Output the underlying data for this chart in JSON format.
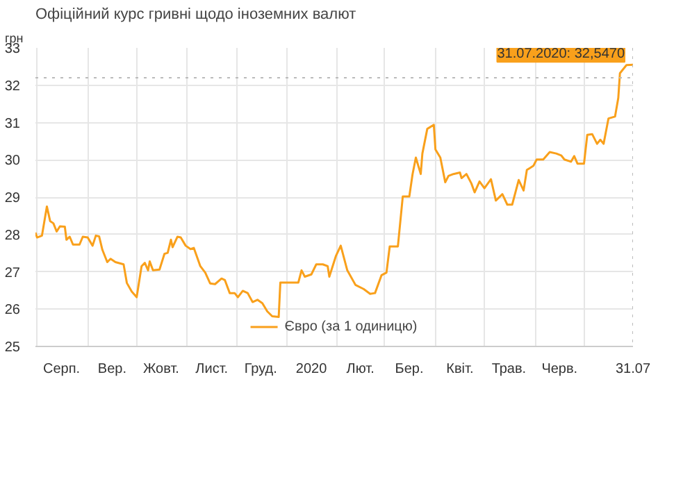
{
  "chart_data": {
    "type": "line",
    "title": "Офіційний курс гривні щодо іноземних валют",
    "ylabel": "грн",
    "x": [
      "2019-07-31",
      "2019-08-01",
      "2019-08-04",
      "2019-08-07",
      "2019-08-09",
      "2019-08-11",
      "2019-08-13",
      "2019-08-15",
      "2019-08-18",
      "2019-08-19",
      "2019-08-21",
      "2019-08-23",
      "2019-08-27",
      "2019-08-29",
      "2019-09-01",
      "2019-09-04",
      "2019-09-06",
      "2019-09-08",
      "2019-09-10",
      "2019-09-13",
      "2019-09-15",
      "2019-09-18",
      "2019-09-23",
      "2019-09-25",
      "2019-09-28",
      "2019-10-01",
      "2019-10-04",
      "2019-10-06",
      "2019-10-08",
      "2019-10-09",
      "2019-10-11",
      "2019-10-15",
      "2019-10-18",
      "2019-10-20",
      "2019-10-22",
      "2019-10-23",
      "2019-10-26",
      "2019-10-28",
      "2019-10-31",
      "2019-11-03",
      "2019-11-05",
      "2019-11-09",
      "2019-11-12",
      "2019-11-15",
      "2019-11-18",
      "2019-11-22",
      "2019-11-24",
      "2019-11-27",
      "2019-11-30",
      "2019-12-02",
      "2019-12-05",
      "2019-12-08",
      "2019-12-11",
      "2019-12-14",
      "2019-12-17",
      "2019-12-20",
      "2019-12-23",
      "2019-12-27",
      "2019-12-28",
      "2020-01-01",
      "2020-01-08",
      "2020-01-10",
      "2020-01-12",
      "2020-01-16",
      "2020-01-19",
      "2020-01-23",
      "2020-01-26",
      "2020-01-27",
      "2020-01-31",
      "2020-02-03",
      "2020-02-07",
      "2020-02-12",
      "2020-02-17",
      "2020-02-21",
      "2020-02-24",
      "2020-02-28",
      "2020-03-02",
      "2020-03-04",
      "2020-03-09",
      "2020-03-12",
      "2020-03-16",
      "2020-03-18",
      "2020-03-20",
      "2020-03-23",
      "2020-03-24",
      "2020-03-27",
      "2020-03-31",
      "2020-04-01",
      "2020-04-04",
      "2020-04-07",
      "2020-04-09",
      "2020-04-12",
      "2020-04-16",
      "2020-04-17",
      "2020-04-20",
      "2020-04-23",
      "2020-04-25",
      "2020-04-28",
      "2020-05-01",
      "2020-05-05",
      "2020-05-08",
      "2020-05-12",
      "2020-05-15",
      "2020-05-18",
      "2020-05-22",
      "2020-05-25",
      "2020-05-27",
      "2020-05-31",
      "2020-06-02",
      "2020-06-06",
      "2020-06-10",
      "2020-06-14",
      "2020-06-17",
      "2020-06-19",
      "2020-06-23",
      "2020-06-25",
      "2020-06-27",
      "2020-07-01",
      "2020-07-03",
      "2020-07-06",
      "2020-07-09",
      "2020-07-11",
      "2020-07-13",
      "2020-07-16",
      "2020-07-20",
      "2020-07-22",
      "2020-07-23",
      "2020-07-27",
      "2020-07-31"
    ],
    "series": [
      {
        "name": "Євро (за 1 одиницю)",
        "color": "#f9a01b",
        "values": [
          28.05,
          27.92,
          27.97,
          28.75,
          28.36,
          28.3,
          28.08,
          28.22,
          28.21,
          27.86,
          27.94,
          27.73,
          27.73,
          27.94,
          27.92,
          27.7,
          27.97,
          27.95,
          27.59,
          27.26,
          27.35,
          27.26,
          27.2,
          26.7,
          26.47,
          26.32,
          27.15,
          27.24,
          27.04,
          27.28,
          27.04,
          27.06,
          27.48,
          27.51,
          27.86,
          27.66,
          27.94,
          27.92,
          27.7,
          27.61,
          27.64,
          27.15,
          26.98,
          26.69,
          26.67,
          26.82,
          26.78,
          26.43,
          26.43,
          26.32,
          26.49,
          26.43,
          26.19,
          26.25,
          26.16,
          25.94,
          25.81,
          25.79,
          26.71,
          26.71,
          26.71,
          27.04,
          26.87,
          26.93,
          27.2,
          27.2,
          27.15,
          26.87,
          27.42,
          27.7,
          27.04,
          26.65,
          26.54,
          26.41,
          26.43,
          26.91,
          26.98,
          27.68,
          27.68,
          29.02,
          29.02,
          29.62,
          30.06,
          29.62,
          30.17,
          30.83,
          30.94,
          30.28,
          30.06,
          29.4,
          29.57,
          29.62,
          29.66,
          29.51,
          29.62,
          29.37,
          29.13,
          29.42,
          29.24,
          29.48,
          28.91,
          29.08,
          28.8,
          28.8,
          29.46,
          29.18,
          29.73,
          29.84,
          30.01,
          30.01,
          30.21,
          30.17,
          30.12,
          30.01,
          29.95,
          30.1,
          29.9,
          29.9,
          30.67,
          30.69,
          30.43,
          30.54,
          30.43,
          31.11,
          31.16,
          31.66,
          32.32,
          32.54,
          32.547
        ]
      }
    ],
    "xlim": [
      "2019-07-31",
      "2020-07-31"
    ],
    "xticks": [
      {
        "value": "2019-08-01",
        "label": null
      },
      {
        "value": "2019-08-16",
        "label": "Серп."
      },
      {
        "value": "2019-09-01",
        "label": null
      },
      {
        "value": "2019-09-16",
        "label": "Вер."
      },
      {
        "value": "2019-10-01",
        "label": null
      },
      {
        "value": "2019-10-16",
        "label": "Жовт."
      },
      {
        "value": "2019-11-01",
        "label": null
      },
      {
        "value": "2019-11-16",
        "label": "Лист."
      },
      {
        "value": "2019-12-01",
        "label": null
      },
      {
        "value": "2019-12-16",
        "label": "Груд."
      },
      {
        "value": "2020-01-01",
        "label": null
      },
      {
        "value": "2020-01-16",
        "label": "2020"
      },
      {
        "value": "2020-02-01",
        "label": null
      },
      {
        "value": "2020-02-15",
        "label": "Лют."
      },
      {
        "value": "2020-03-01",
        "label": null
      },
      {
        "value": "2020-03-16",
        "label": "Бер."
      },
      {
        "value": "2020-04-01",
        "label": null
      },
      {
        "value": "2020-04-16",
        "label": "Квіт."
      },
      {
        "value": "2020-05-01",
        "label": null
      },
      {
        "value": "2020-05-16",
        "label": "Трав."
      },
      {
        "value": "2020-06-01",
        "label": null
      },
      {
        "value": "2020-06-16",
        "label": "Черв."
      },
      {
        "value": "2020-07-01",
        "label": null
      },
      {
        "value": "2020-07-31",
        "label": "31.07"
      }
    ],
    "ylim": [
      25,
      33
    ],
    "yticks": [
      25,
      26,
      27,
      28,
      29,
      30,
      31,
      32,
      33
    ],
    "grid": true,
    "legend": "bottom",
    "marker": "none",
    "line_style": "solid",
    "ref_lines": [
      {
        "axis": "y",
        "value": 32.2,
        "color": "#bbbbbb",
        "line_style": "dotted"
      },
      {
        "axis": "x",
        "value": "2020-07-31",
        "color": "#bbbbbb",
        "line_style": "dotted"
      }
    ],
    "annotations": [
      {
        "text": "31.07.2020: 32,5470",
        "x": "2020-07-31",
        "y": 32.547
      }
    ]
  }
}
